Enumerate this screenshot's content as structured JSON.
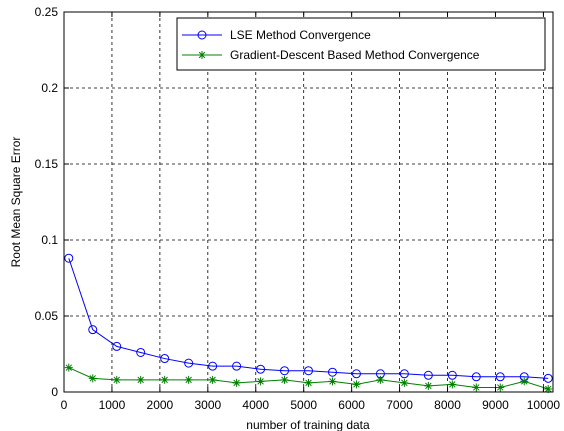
{
  "chart_data": {
    "type": "line",
    "title": "",
    "xlabel": "number of training data",
    "ylabel": "Root Mean Square Error",
    "xlim": [
      0,
      10200
    ],
    "ylim": [
      0,
      0.25
    ],
    "xticks": [
      0,
      1000,
      2000,
      3000,
      4000,
      5000,
      6000,
      7000,
      8000,
      9000,
      10000
    ],
    "xtick_labels": [
      "0",
      "1000",
      "2000",
      "3000",
      "4000",
      "5000",
      "6000",
      "7000",
      "8000",
      "9000",
      "10000"
    ],
    "yticks": [
      0,
      0.05,
      0.1,
      0.15,
      0.2,
      0.25
    ],
    "ytick_labels": [
      "0",
      "0.05",
      "0.1",
      "0.15",
      "0.2",
      "0.25"
    ],
    "grid": true,
    "legend_position": "top-right",
    "series": [
      {
        "name": "LSE Method Convergence",
        "color": "#0000ff",
        "marker": "circle",
        "x": [
          100,
          600,
          1100,
          1600,
          2100,
          2600,
          3100,
          3600,
          4100,
          4600,
          5100,
          5600,
          6100,
          6600,
          7100,
          7600,
          8100,
          8600,
          9100,
          9600,
          10100
        ],
        "y": [
          0.088,
          0.041,
          0.03,
          0.026,
          0.022,
          0.019,
          0.017,
          0.017,
          0.015,
          0.014,
          0.014,
          0.013,
          0.012,
          0.012,
          0.012,
          0.011,
          0.011,
          0.01,
          0.01,
          0.01,
          0.009
        ]
      },
      {
        "name": "Gradient-Descent Based Method Convergence",
        "color": "#008000",
        "marker": "star",
        "x": [
          100,
          600,
          1100,
          1600,
          2100,
          2600,
          3100,
          3600,
          4100,
          4600,
          5100,
          5600,
          6100,
          6600,
          7100,
          7600,
          8100,
          8600,
          9100,
          9600,
          10100
        ],
        "y": [
          0.016,
          0.009,
          0.008,
          0.008,
          0.008,
          0.008,
          0.008,
          0.006,
          0.007,
          0.008,
          0.006,
          0.007,
          0.005,
          0.008,
          0.006,
          0.004,
          0.005,
          0.003,
          0.003,
          0.007,
          0.002
        ]
      }
    ]
  }
}
